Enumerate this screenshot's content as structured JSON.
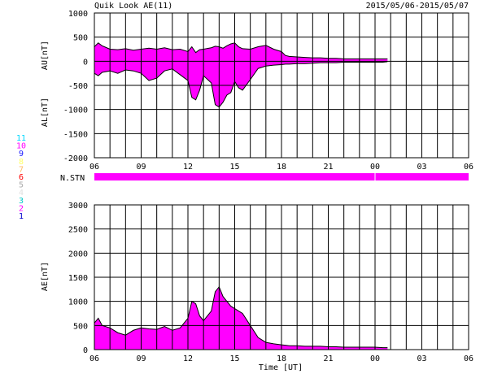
{
  "header": {
    "title": "Quik Look AE(11)",
    "date_range": "2015/05/06-2015/05/07"
  },
  "colors": {
    "fill": "#ff00ff",
    "line": "#000000",
    "grid": "#000000"
  },
  "station_legend": [
    {
      "label": "11",
      "color": "#00d8ff"
    },
    {
      "label": "10",
      "color": "#ff00ff"
    },
    {
      "label": "9",
      "color": "#1a1aff"
    },
    {
      "label": "8",
      "color": "#ffff66"
    },
    {
      "label": "7",
      "color": "#ffbb66"
    },
    {
      "label": "6",
      "color": "#ff0000"
    },
    {
      "label": "5",
      "color": "#aaaaaa"
    },
    {
      "label": "4",
      "color": "#e0e0e0"
    },
    {
      "label": "3",
      "color": "#00c8c8"
    },
    {
      "label": "2",
      "color": "#ff00ff"
    },
    {
      "label": "1",
      "color": "#0000cc"
    }
  ],
  "nstn": {
    "label": "N.STN",
    "coverage_hours": [
      0,
      25
    ],
    "gap_hour": 18
  },
  "chart_data": [
    {
      "type": "area",
      "name": "AU/AL",
      "ylabel_upper": "AU[nT]",
      "ylabel_lower": "AL[nT]",
      "ylim": [
        -2000,
        1000
      ],
      "y_ticks": [
        1000,
        500,
        0,
        -500,
        -1000,
        -1500,
        -2000
      ],
      "x_tick_labels": [
        "06",
        "09",
        "12",
        "15",
        "18",
        "21",
        "00",
        "03",
        "06"
      ],
      "x_range_hours": [
        0,
        24
      ],
      "grid": "vertical lines every hour, horizontal every 500 nT",
      "au": {
        "x": [
          0,
          0.25,
          0.5,
          1,
          1.5,
          2,
          2.5,
          3,
          3.5,
          4,
          4.5,
          5,
          5.5,
          6,
          6.25,
          6.5,
          6.75,
          7,
          7.5,
          7.75,
          8,
          8.25,
          8.5,
          8.75,
          9,
          9.25,
          9.5,
          10,
          10.5,
          11,
          11.5,
          12,
          12.25,
          12.5,
          13,
          13.5,
          14,
          14.5,
          15,
          15.5,
          16,
          16.5,
          17,
          17.5,
          18,
          18.5,
          18.8
        ],
        "values": [
          300,
          380,
          320,
          250,
          240,
          260,
          230,
          250,
          270,
          250,
          280,
          240,
          250,
          200,
          300,
          180,
          240,
          250,
          280,
          310,
          300,
          270,
          320,
          360,
          380,
          300,
          260,
          250,
          300,
          330,
          250,
          200,
          120,
          100,
          90,
          80,
          70,
          70,
          60,
          60,
          50,
          50,
          50,
          50,
          50,
          50,
          50
        ]
      },
      "al": {
        "x": [
          0,
          0.25,
          0.5,
          1,
          1.5,
          2,
          2.5,
          3,
          3.5,
          4,
          4.5,
          5,
          5.5,
          6,
          6.25,
          6.5,
          6.75,
          7,
          7.5,
          7.75,
          8,
          8.25,
          8.5,
          8.75,
          9,
          9.25,
          9.5,
          10,
          10.5,
          11,
          11.5,
          12,
          12.25,
          12.5,
          13,
          13.5,
          14,
          14.5,
          15,
          15.5,
          16,
          16.5,
          17,
          17.5,
          18,
          18.5,
          18.8
        ],
        "values": [
          -250,
          -300,
          -230,
          -200,
          -250,
          -180,
          -200,
          -250,
          -400,
          -350,
          -200,
          -160,
          -280,
          -400,
          -750,
          -800,
          -600,
          -300,
          -450,
          -900,
          -950,
          -850,
          -700,
          -650,
          -420,
          -550,
          -600,
          -380,
          -150,
          -100,
          -80,
          -70,
          -60,
          -60,
          -50,
          -50,
          -40,
          -30,
          -30,
          -30,
          -20,
          -20,
          -20,
          -20,
          -20,
          -20,
          -10
        ]
      }
    },
    {
      "type": "area",
      "name": "AE",
      "ylabel": "AE[nT]",
      "xlabel": "Time [UT]",
      "ylim": [
        0,
        3000
      ],
      "y_ticks": [
        3000,
        2500,
        2000,
        1500,
        1000,
        500,
        0
      ],
      "x_tick_labels": [
        "06",
        "09",
        "12",
        "15",
        "18",
        "21",
        "00",
        "03",
        "06"
      ],
      "x_range_hours": [
        0,
        24
      ],
      "grid": "vertical lines every hour, horizontal every 500 nT",
      "ae": {
        "x": [
          0,
          0.25,
          0.5,
          1,
          1.5,
          2,
          2.5,
          3,
          3.5,
          4,
          4.5,
          5,
          5.5,
          6,
          6.25,
          6.5,
          6.75,
          7,
          7.5,
          7.75,
          8,
          8.25,
          8.5,
          8.75,
          9,
          9.25,
          9.5,
          10,
          10.5,
          11,
          11.5,
          12,
          12.25,
          12.5,
          13,
          13.5,
          14,
          14.5,
          15,
          15.5,
          16,
          16.5,
          17,
          17.5,
          18,
          18.5,
          18.8
        ],
        "values": [
          550,
          650,
          500,
          450,
          350,
          300,
          400,
          450,
          430,
          420,
          480,
          400,
          450,
          650,
          1000,
          950,
          700,
          600,
          800,
          1200,
          1300,
          1100,
          1000,
          900,
          850,
          800,
          750,
          500,
          250,
          150,
          120,
          100,
          90,
          80,
          80,
          70,
          70,
          70,
          60,
          60,
          50,
          50,
          50,
          50,
          50,
          40,
          40
        ]
      }
    }
  ]
}
